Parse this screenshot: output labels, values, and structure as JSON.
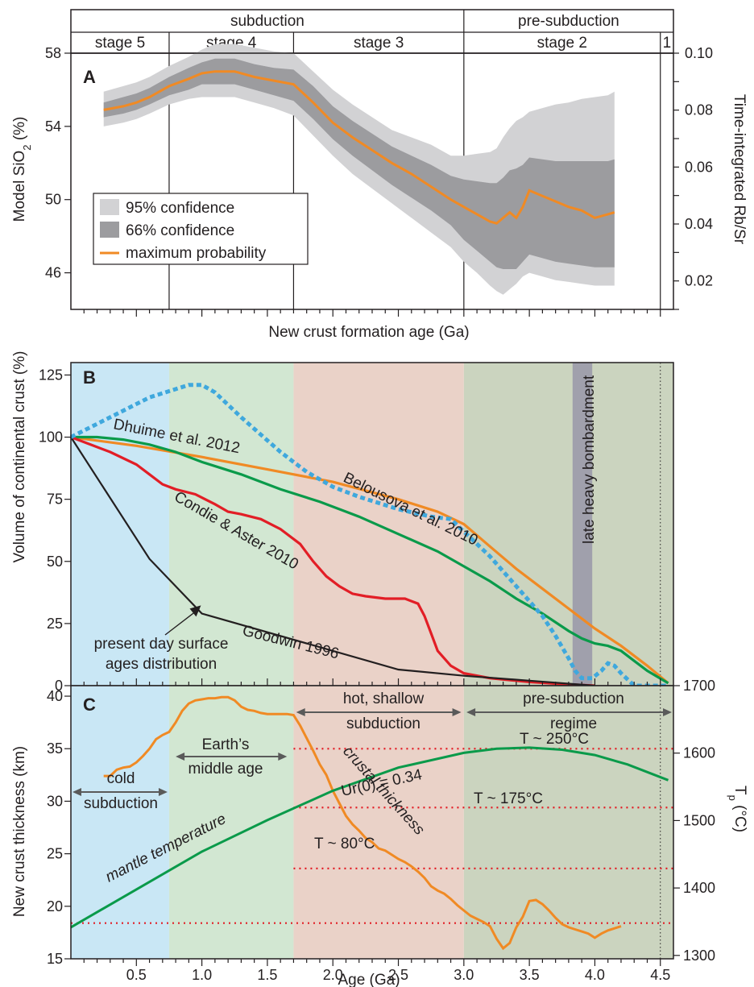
{
  "colors": {
    "ink": "#231f20",
    "stage1": "#c9e7f5",
    "stage2": "#d2e7d2",
    "stage3": "#ead2c8",
    "stage4": "#cbd4bf",
    "bombardment": "#a0a0ac",
    "ci95": "#d2d2d4",
    "ci66": "#9c9c9f",
    "orange": "#f08a24",
    "green": "#0a9a4a",
    "red": "#e21e26",
    "black": "#231f20",
    "blue": "#3fa8dd",
    "dotted": "#e21e26"
  },
  "chart_data": [
    {
      "panel_label": "A",
      "type": "area",
      "ylabel_prefix": "Model SiO",
      "ylabel_sub": "2",
      "ylabel_suffix": " (%)",
      "y2label": "Time-integrated Rb/Sr",
      "xlabel": "New crust formation age (Ga)",
      "xlim": [
        0,
        4.6
      ],
      "ylim": [
        44,
        58
      ],
      "y_ticks": [
        46,
        50,
        54,
        58
      ],
      "y_ticks_labels": [
        "46",
        "50",
        "54",
        "58"
      ],
      "y2lim": [
        0.01,
        0.1
      ],
      "y2_ticks": [
        0.02,
        0.04,
        0.06,
        0.08,
        0.1
      ],
      "y2_tick_labels": [
        "0.02",
        "0.04",
        "0.06",
        "0.08",
        "0.10"
      ],
      "stages_header": [
        {
          "label": "subduction",
          "from": 0,
          "to": 3.0
        },
        {
          "label": "pre-subduction",
          "from": 3.0,
          "to": 4.6
        }
      ],
      "stages": [
        {
          "label": "stage 5",
          "from": 0,
          "to": 0.75
        },
        {
          "label": "stage 4",
          "from": 0.75,
          "to": 1.7
        },
        {
          "label": "stage 3",
          "from": 1.7,
          "to": 3.0
        },
        {
          "label": "stage 2",
          "from": 3.0,
          "to": 4.5
        },
        {
          "label": "1",
          "from": 4.5,
          "to": 4.6
        }
      ],
      "legend": [
        {
          "label": "95% confidence",
          "kind": "ci95"
        },
        {
          "label": "66% confidence",
          "kind": "ci66"
        },
        {
          "label": "maximum probability",
          "kind": "line"
        }
      ],
      "x": [
        0.25,
        0.4,
        0.5,
        0.6,
        0.75,
        0.9,
        1.0,
        1.1,
        1.25,
        1.4,
        1.55,
        1.7,
        1.85,
        2.0,
        2.15,
        2.3,
        2.45,
        2.6,
        2.75,
        2.9,
        3.0,
        3.1,
        3.2,
        3.25,
        3.3,
        3.35,
        3.4,
        3.45,
        3.5,
        3.6,
        3.7,
        3.8,
        3.9,
        4.0,
        4.1,
        4.15
      ],
      "max_probability": [
        54.9,
        55.1,
        55.3,
        55.6,
        56.2,
        56.6,
        56.9,
        57.0,
        57.0,
        56.7,
        56.5,
        56.3,
        55.3,
        54.2,
        53.4,
        52.7,
        52.0,
        51.4,
        50.7,
        50.0,
        49.6,
        49.2,
        48.8,
        48.7,
        49.0,
        49.3,
        49.0,
        49.6,
        50.5,
        50.2,
        49.9,
        49.6,
        49.4,
        49.0,
        49.2,
        49.3
      ],
      "ci66_low": [
        54.5,
        54.7,
        54.9,
        55.2,
        55.7,
        56.0,
        56.3,
        56.3,
        56.3,
        56.0,
        55.7,
        55.4,
        54.4,
        53.3,
        52.4,
        51.6,
        50.8,
        50.1,
        49.4,
        48.6,
        47.8,
        47.2,
        46.6,
        46.3,
        46.2,
        46.2,
        46.2,
        46.6,
        47.0,
        46.8,
        46.6,
        46.5,
        46.4,
        46.3,
        46.3,
        46.3
      ],
      "ci66_high": [
        55.3,
        55.6,
        55.8,
        56.1,
        56.7,
        57.2,
        57.5,
        57.7,
        57.7,
        57.4,
        57.2,
        57.1,
        56.2,
        55.1,
        54.3,
        53.6,
        52.9,
        52.4,
        51.9,
        51.3,
        51.1,
        51.0,
        50.9,
        50.9,
        51.2,
        51.6,
        51.7,
        51.9,
        52.3,
        52.2,
        52.1,
        52.1,
        52.1,
        52.1,
        52.1,
        52.2
      ],
      "ci95_low": [
        54.0,
        54.2,
        54.4,
        54.7,
        55.2,
        55.5,
        55.6,
        55.6,
        55.6,
        55.3,
        55.0,
        54.6,
        53.5,
        52.4,
        51.4,
        50.6,
        49.8,
        49.0,
        48.2,
        47.4,
        46.6,
        46.0,
        45.3,
        45.0,
        44.8,
        45.1,
        45.4,
        45.8,
        46.0,
        45.8,
        45.6,
        45.5,
        45.4,
        45.3,
        45.3,
        45.3
      ],
      "ci95_high": [
        55.9,
        56.2,
        56.4,
        56.7,
        57.3,
        57.8,
        58.2,
        58.5,
        58.5,
        58.3,
        58.1,
        58.0,
        57.0,
        56.0,
        55.2,
        54.5,
        53.8,
        53.4,
        53.0,
        52.4,
        52.4,
        52.5,
        52.6,
        52.8,
        53.4,
        53.9,
        54.3,
        54.5,
        54.8,
        55.0,
        55.2,
        55.3,
        55.5,
        55.6,
        55.7,
        55.9
      ]
    },
    {
      "panel_label": "B",
      "type": "line",
      "ylabel": "Volume of continental crust (%)",
      "xlim": [
        0,
        4.6
      ],
      "ylim": [
        0,
        130
      ],
      "y_ticks": [
        0,
        25,
        50,
        75,
        100,
        125
      ],
      "y_tick_labels": [
        "0",
        "25",
        "50",
        "75",
        "100",
        "125"
      ],
      "band_annotation": "late heavy bombardment",
      "band": [
        3.83,
        3.98
      ],
      "series": [
        {
          "name": "Dhuime et al. 2012",
          "color_key": "orange",
          "x": [
            0,
            0.5,
            1.0,
            1.5,
            2.0,
            2.5,
            2.8,
            3.0,
            3.2,
            3.4,
            3.6,
            3.8,
            4.0,
            4.2,
            4.4,
            4.56
          ],
          "y": [
            100,
            96.5,
            92,
            87,
            82,
            75,
            70,
            65,
            56,
            47,
            39,
            31,
            23,
            16,
            8,
            1
          ]
        },
        {
          "name": "Belousova et al. 2010",
          "color_key": "green",
          "x": [
            0,
            0.2,
            0.4,
            0.6,
            0.8,
            1.0,
            1.3,
            1.6,
            1.9,
            2.2,
            2.5,
            2.8,
            3.0,
            3.2,
            3.4,
            3.6,
            3.8,
            3.9,
            4.0,
            4.1,
            4.2,
            4.3,
            4.4,
            4.56
          ],
          "y": [
            100,
            100,
            99,
            97,
            94,
            90,
            85,
            79,
            74,
            68,
            61,
            54,
            48,
            42,
            35,
            29,
            22,
            19,
            17,
            16,
            14,
            10,
            6,
            1
          ]
        },
        {
          "name": "Condie & Aster 2010",
          "color_key": "red",
          "x": [
            0,
            0.15,
            0.3,
            0.5,
            0.6,
            0.7,
            0.8,
            0.95,
            1.1,
            1.2,
            1.3,
            1.45,
            1.6,
            1.75,
            1.85,
            1.95,
            2.05,
            2.15,
            2.25,
            2.4,
            2.55,
            2.65,
            2.7,
            2.75,
            2.8,
            2.9,
            3.0,
            3.2,
            3.5,
            3.8,
            4.0
          ],
          "y": [
            100,
            97,
            94,
            89,
            85,
            81,
            79,
            77,
            73,
            70,
            69,
            67,
            63,
            57,
            50,
            44,
            40,
            37,
            36,
            35,
            35,
            33,
            28,
            21,
            14,
            8,
            5,
            3,
            1.5,
            0.5,
            0
          ]
        },
        {
          "name": "Goodwin 1996",
          "color_key": "black",
          "x": [
            0,
            0.6,
            1.0,
            2.5,
            3.0,
            3.5,
            4.0
          ],
          "y": [
            100,
            51,
            29,
            6.5,
            4,
            2,
            0
          ]
        },
        {
          "name": "",
          "color_key": "blue",
          "dashed": true,
          "x": [
            0,
            0.3,
            0.6,
            0.9,
            1.0,
            1.1,
            1.3,
            1.6,
            1.8,
            2.0,
            2.2,
            2.5,
            2.75,
            2.9,
            3.0,
            3.2,
            3.4,
            3.6,
            3.7,
            3.8,
            3.85,
            3.9,
            3.98,
            4.05,
            4.1,
            4.15,
            4.2,
            4.3,
            4.4,
            4.56
          ],
          "y": [
            100,
            108,
            116,
            121,
            121,
            118,
            108,
            94,
            86,
            80,
            76,
            71,
            68,
            67,
            62,
            52,
            40,
            28,
            20,
            11,
            6,
            3,
            3,
            6,
            9,
            8,
            5,
            0,
            0,
            0
          ]
        }
      ],
      "labels": {
        "dhuime": "Dhuime et al. 2012",
        "belousova": "Belousova et al. 2010",
        "condie": "Condie & Aster 2010",
        "goodwin": "Goodwin 1996",
        "present_day_1": "present day surface",
        "present_day_2": "ages distribution"
      }
    },
    {
      "panel_label": "C",
      "type": "line",
      "ylabel": "New crust thickness (km)",
      "y2label_main": "T",
      "y2label_sub": "p",
      "y2label_unit": " (°C)",
      "xlabel": "Age (Ga)",
      "xlim": [
        0,
        4.6
      ],
      "x_ticks": [
        0.5,
        1.0,
        1.5,
        2.0,
        2.5,
        3.0,
        3.5,
        4.0,
        4.5
      ],
      "x_tick_labels": [
        "0.5",
        "1.0",
        "1.5",
        "2.0",
        "2.5",
        "3.0",
        "3.5",
        "4.0",
        "4.5"
      ],
      "ylim": [
        15,
        41
      ],
      "y_ticks": [
        15,
        20,
        25,
        30,
        35,
        40
      ],
      "y_tick_labels": [
        "15",
        "20",
        "25",
        "30",
        "35",
        "40"
      ],
      "y2lim": [
        1295,
        1700
      ],
      "y2_ticks": [
        1300,
        1400,
        1500,
        1600,
        1700
      ],
      "y2_tick_labels": [
        "1300",
        "1400",
        "1500",
        "1600",
        "1700"
      ],
      "regimes": [
        {
          "label": "cold",
          "label2": "subduction",
          "from": 0,
          "to": 0.75
        },
        {
          "label": "Earth’s",
          "label2": "middle age",
          "from": 0.75,
          "to": 1.7
        },
        {
          "label": "hot, shallow",
          "label2": "subduction",
          "from": 1.7,
          "to": 3.0
        },
        {
          "label": "pre-subduction",
          "label2": "regime",
          "from": 3.0,
          "to": 4.5
        }
      ],
      "series": [
        {
          "name": "crustal thickness",
          "color_key": "orange",
          "x": [
            0.25,
            0.3,
            0.35,
            0.4,
            0.45,
            0.5,
            0.55,
            0.6,
            0.65,
            0.7,
            0.75,
            0.8,
            0.85,
            0.9,
            0.95,
            1.0,
            1.05,
            1.1,
            1.15,
            1.2,
            1.25,
            1.3,
            1.35,
            1.4,
            1.45,
            1.5,
            1.55,
            1.6,
            1.65,
            1.7,
            1.75,
            1.8,
            1.85,
            1.9,
            1.95,
            2.0,
            2.05,
            2.1,
            2.15,
            2.2,
            2.25,
            2.3,
            2.35,
            2.4,
            2.45,
            2.5,
            2.55,
            2.6,
            2.65,
            2.7,
            2.75,
            2.8,
            2.85,
            2.9,
            2.95,
            3.0,
            3.05,
            3.1,
            3.15,
            3.2,
            3.25,
            3.3,
            3.35,
            3.4,
            3.45,
            3.5,
            3.55,
            3.6,
            3.65,
            3.7,
            3.75,
            3.8,
            3.85,
            3.9,
            3.95,
            4.0,
            4.05,
            4.1,
            4.15,
            4.2
          ],
          "y": [
            32.4,
            32.4,
            33.0,
            33.2,
            33.3,
            33.7,
            34.3,
            35.0,
            35.9,
            36.3,
            36.6,
            37.5,
            38.6,
            39.3,
            39.6,
            39.7,
            39.8,
            39.8,
            39.9,
            39.9,
            39.6,
            39.0,
            38.7,
            38.6,
            38.4,
            38.3,
            38.3,
            38.3,
            38.3,
            38.2,
            37.2,
            36.0,
            34.8,
            33.5,
            32.5,
            31.0,
            29.8,
            28.6,
            27.8,
            27.2,
            26.5,
            26.1,
            25.5,
            25.3,
            24.9,
            24.5,
            24.2,
            23.8,
            23.3,
            22.7,
            21.9,
            21.5,
            21.2,
            20.7,
            20.1,
            19.6,
            19.1,
            18.8,
            18.5,
            18.1,
            16.9,
            16.0,
            16.5,
            18.0,
            19.0,
            20.5,
            20.6,
            20.2,
            19.6,
            18.9,
            18.3,
            18.0,
            17.8,
            17.6,
            17.4,
            17.0,
            17.4,
            17.7,
            17.9,
            18.1
          ]
        },
        {
          "name": "mantle temperature",
          "color_key": "green",
          "x": [
            0,
            0.5,
            1.0,
            1.5,
            2.0,
            2.5,
            3.0,
            3.25,
            3.5,
            3.75,
            4.0,
            4.25,
            4.56
          ],
          "y": [
            18.0,
            21.6,
            25.2,
            28.2,
            31.0,
            33.2,
            34.6,
            35.0,
            35.1,
            34.9,
            34.4,
            33.5,
            32.0
          ]
        }
      ],
      "isotherms": [
        {
          "label": "T ~ 80°C",
          "y": 23.6
        },
        {
          "label": "T ~ 175°C",
          "y": 29.4
        },
        {
          "label": "T ~ 250°C",
          "y": 35.0
        }
      ],
      "baseline_y": 18.4,
      "labels": {
        "mantle": "mantle temperature",
        "ur": "Ur(0) = 0.34",
        "crustal": "crustal thickness"
      }
    }
  ]
}
